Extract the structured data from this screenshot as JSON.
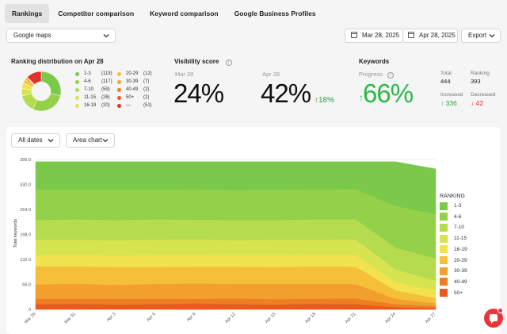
{
  "tabs": [
    "Rankings",
    "Competitor comparison",
    "Keyword comparison",
    "Google Business Profiles"
  ],
  "source_select": "Google maps",
  "date_from": "Mar 28, 2025",
  "date_to": "Apr 28, 2025",
  "export_label": "Export",
  "distribution": {
    "title": "Ranking distribution on Apr 28",
    "items": [
      {
        "range": "1-3",
        "count": "(119)",
        "color": "#7bc94b",
        "value": 119
      },
      {
        "range": "4-6",
        "count": "(117)",
        "color": "#94d04a",
        "value": 117
      },
      {
        "range": "7-10",
        "count": "(59)",
        "color": "#b5db4e",
        "value": 59
      },
      {
        "range": "11-15",
        "count": "(26)",
        "color": "#d6e44f",
        "value": 26
      },
      {
        "range": "16-19",
        "count": "(20)",
        "color": "#f1e24e",
        "value": 20
      },
      {
        "range": "20-29",
        "count": "(12)",
        "color": "#f5bf3a",
        "value": 12
      },
      {
        "range": "30-39",
        "count": "(7)",
        "color": "#f29f2d",
        "value": 7
      },
      {
        "range": "40-49",
        "count": "(2)",
        "color": "#ef7d23",
        "value": 2
      },
      {
        "range": "50+",
        "count": "(2)",
        "color": "#ea5a1f",
        "value": 2
      },
      {
        "range": "—",
        "count": "(51)",
        "color": "#e0322e",
        "value": 51
      }
    ]
  },
  "visibility": {
    "title": "Visibility score",
    "label_start": "Mar 28",
    "value_start": "24%",
    "label_end": "Apr 28",
    "value_end": "42%",
    "delta": "18%"
  },
  "keywords": {
    "title": "Keywords",
    "progress_label": "Progress",
    "progress_value": "66%",
    "total_label": "Total",
    "total_value": "444",
    "ranking_label": "Ranking",
    "ranking_value": "393",
    "increased_label": "Increased",
    "increased_value": "336",
    "decreased_label": "Decreased",
    "decreased_value": "42"
  },
  "chart_controls": {
    "dates": "All dates",
    "type": "Area chart"
  },
  "chart_data": {
    "type": "area",
    "ylabel": "Total keywords",
    "ylim": [
      0,
      396
    ],
    "yticks": [
      "0",
      "66.0",
      "132.0",
      "198.0",
      "264.0",
      "330.0",
      "396.0"
    ],
    "x": [
      "Mar 29",
      "Mar 31",
      "Apr 3",
      "Apr 6",
      "Apr 9",
      "Apr 12",
      "Apr 15",
      "Apr 18",
      "Apr 21",
      "Apr 24",
      "Apr 27"
    ],
    "legend_title": "RANKING",
    "series": [
      {
        "name": "50+",
        "color": "#ea5a1f",
        "values": [
          14,
          15,
          13,
          14,
          16,
          14,
          13,
          15,
          14,
          6,
          4
        ]
      },
      {
        "name": "40-49",
        "color": "#ef7d23",
        "values": [
          14,
          13,
          15,
          14,
          12,
          15,
          14,
          13,
          15,
          8,
          4
        ]
      },
      {
        "name": "30-39",
        "color": "#f29f2d",
        "values": [
          38,
          40,
          37,
          39,
          41,
          38,
          40,
          39,
          38,
          14,
          8
        ]
      },
      {
        "name": "20-29",
        "color": "#f5bf3a",
        "values": [
          48,
          46,
          47,
          45,
          44,
          46,
          45,
          47,
          46,
          22,
          14
        ]
      },
      {
        "name": "16-19",
        "color": "#f1e24e",
        "values": [
          30,
          31,
          30,
          32,
          31,
          30,
          31,
          30,
          31,
          22,
          20
        ]
      },
      {
        "name": "11-15",
        "color": "#d6e44f",
        "values": [
          40,
          39,
          41,
          40,
          41,
          40,
          41,
          40,
          41,
          34,
          26
        ]
      },
      {
        "name": "7-10",
        "color": "#b5db4e",
        "values": [
          52,
          54,
          53,
          54,
          52,
          53,
          52,
          54,
          53,
          57,
          59
        ]
      },
      {
        "name": "4-6",
        "color": "#94d04a",
        "values": [
          80,
          78,
          80,
          78,
          80,
          79,
          80,
          79,
          80,
          110,
          117
        ]
      },
      {
        "name": "1-3",
        "color": "#7bc94b",
        "values": [
          74,
          74,
          74,
          74,
          73,
          75,
          74,
          73,
          72,
          117,
          119
        ]
      }
    ]
  }
}
